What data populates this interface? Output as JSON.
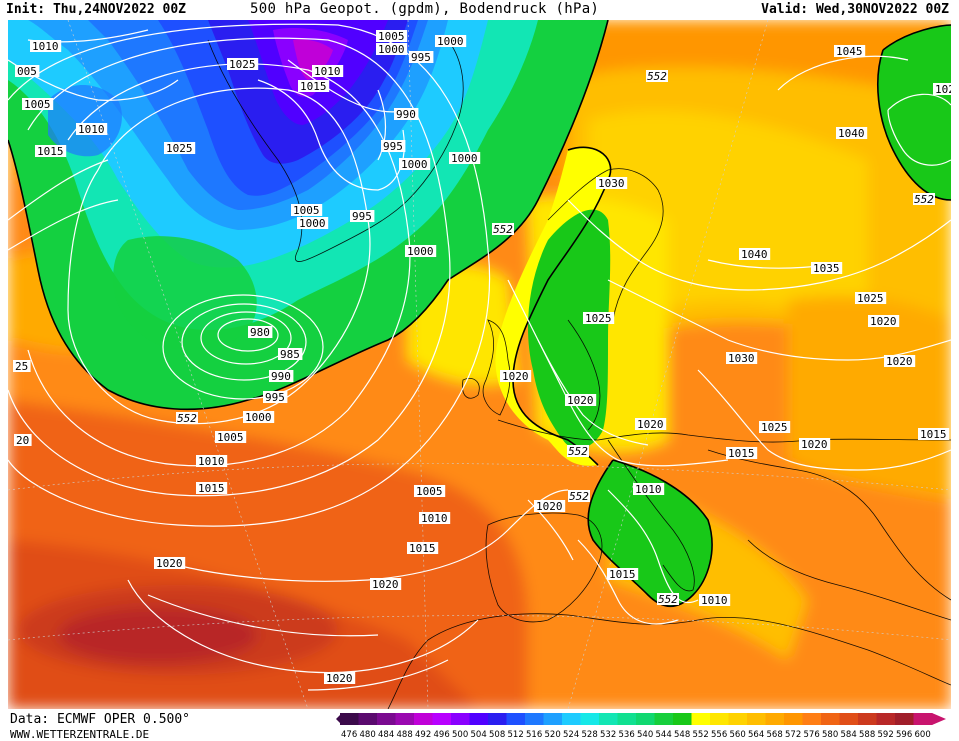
{
  "header": {
    "init": "Init: Thu,24NOV2022 00Z",
    "title": "500 hPa Geopot. (gpdm), Bodendruck (hPa)",
    "valid": "Valid: Wed,30NOV2022 00Z"
  },
  "footer": {
    "data_source": "Data: ECMWF OPER 0.500°",
    "website": "WWW.WETTERZENTRALE.DE"
  },
  "legend": {
    "values": [
      "476",
      "480",
      "484",
      "488",
      "492",
      "496",
      "500",
      "504",
      "508",
      "512",
      "516",
      "520",
      "524",
      "528",
      "532",
      "536",
      "540",
      "544",
      "548",
      "552",
      "556",
      "560",
      "564",
      "568",
      "572",
      "576",
      "580",
      "584",
      "588",
      "592",
      "596",
      "600"
    ],
    "colors": [
      "#3b0a4a",
      "#5a0a6e",
      "#7a0a90",
      "#9a08b0",
      "#c000d8",
      "#b800ff",
      "#8a00ff",
      "#5000ff",
      "#2a1ef0",
      "#1e50ff",
      "#1e78ff",
      "#1ea0ff",
      "#1ecbff",
      "#16e8e8",
      "#12e6b4",
      "#10e090",
      "#10d870",
      "#16cf3c",
      "#18c818",
      "#ffff00",
      "#ffe600",
      "#ffd200",
      "#ffbe00",
      "#ffaa00",
      "#ff9600",
      "#ff7e14",
      "#f06414",
      "#e04e18",
      "#cc3a1e",
      "#b82828",
      "#a01e2a",
      "#c8146e"
    ]
  },
  "map": {
    "height_contour_labels": [
      "552",
      "552",
      "552",
      "552",
      "552",
      "552",
      "552"
    ],
    "pressure_labels": {
      "p1005a": "1005",
      "p1000a": "1000",
      "p995a": "995",
      "p1000b": "1000",
      "p1025a": "1025",
      "p1010a": "1010",
      "p1015a": "1015",
      "p990a": "990",
      "p995b": "995",
      "p1000c": "1000",
      "p1000d": "1000",
      "p1005b": "1005",
      "p1000e": "1000",
      "p995c": "995",
      "p1000f": "1000",
      "p1010b": "1010",
      "p005": "005",
      "p1005c": "1005",
      "p1010c": "1010",
      "p1015b": "1015",
      "p1025b": "1025",
      "p980": "980",
      "p985": "985",
      "p990b": "990",
      "p995d": "995",
      "p1000g": "1000",
      "p1005d": "1005",
      "p1010d": "1010",
      "p1015c": "1015",
      "p25": "25",
      "p20": "20",
      "p1020a": "1020",
      "p1020b": "1020",
      "p1020c": "1020",
      "p1005e": "1005",
      "p1010e": "1010",
      "p1015d": "1015",
      "p1020d": "1020",
      "p1020e": "1020",
      "p1030a": "1030",
      "p1025c": "1025",
      "p1020f": "1020",
      "p1020g": "1020",
      "p1010f": "1010",
      "p1015e": "1015",
      "p1010g": "1010",
      "p1045": "1045",
      "p1025d": "1025",
      "p1040a": "1040",
      "p1040b": "1040",
      "p1035": "1035",
      "p1025e": "1025",
      "p1020h": "1020",
      "p1030b": "1030",
      "p1020i": "1020",
      "p1025f": "1025",
      "p1015f": "1015",
      "p1020j": "1020",
      "p1015g": "1015"
    }
  }
}
